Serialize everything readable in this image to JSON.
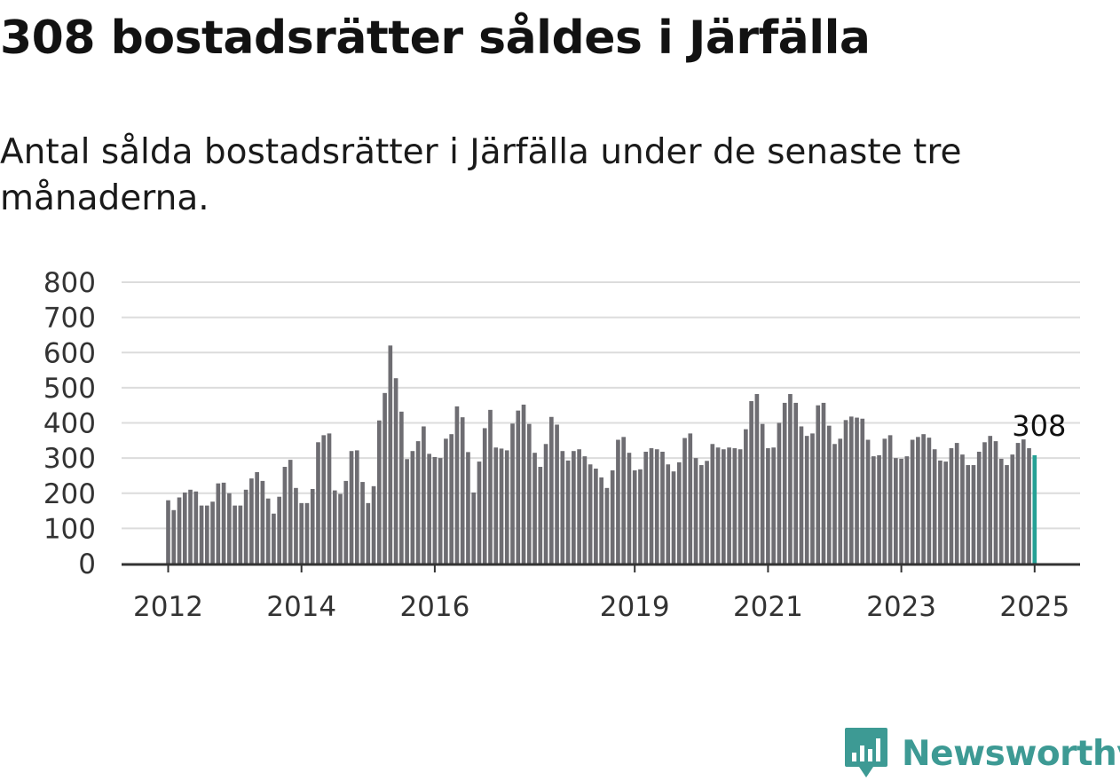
{
  "header": {
    "title": "308 bostadsrätter såldes i Järfälla",
    "subtitle": "Antal sålda bostadsrätter i Järfälla under de senaste tre månaderna."
  },
  "brand": {
    "logo_text": "Newsworthy",
    "logo_icon": "newsworthy-chart-icon",
    "accent_color": "#3d9a94"
  },
  "chart_data": {
    "type": "bar",
    "title": "",
    "xlabel": "",
    "ylabel": "",
    "ylim": [
      0,
      800
    ],
    "yticks": [
      0,
      100,
      200,
      300,
      400,
      500,
      600,
      700,
      800
    ],
    "xtick_labels": [
      "2012",
      "2014",
      "2016",
      "2019",
      "2021",
      "2023",
      "2025"
    ],
    "grid": "horizontal",
    "bar_color": "#6e6d72",
    "highlight_color": "#25a195",
    "highlight_label": "308",
    "start": "2012-01",
    "end": "2025-01",
    "values": [
      180,
      152,
      188,
      202,
      210,
      205,
      165,
      165,
      176,
      228,
      230,
      200,
      165,
      165,
      210,
      242,
      260,
      235,
      185,
      142,
      190,
      275,
      295,
      215,
      172,
      172,
      212,
      345,
      365,
      370,
      208,
      198,
      235,
      320,
      322,
      232,
      172,
      220,
      407,
      485,
      620,
      527,
      432,
      297,
      320,
      348,
      390,
      312,
      303,
      300,
      355,
      368,
      447,
      416,
      317,
      202,
      290,
      385,
      437,
      330,
      327,
      322,
      398,
      435,
      452,
      397,
      315,
      275,
      340,
      417,
      395,
      320,
      293,
      320,
      325,
      305,
      282,
      270,
      245,
      215,
      265,
      352,
      360,
      315,
      265,
      268,
      318,
      328,
      325,
      318,
      282,
      262,
      288,
      357,
      370,
      300,
      280,
      292,
      340,
      330,
      325,
      330,
      328,
      325,
      382,
      462,
      482,
      397,
      328,
      330,
      400,
      457,
      482,
      457,
      390,
      363,
      370,
      450,
      457,
      392,
      340,
      355,
      408,
      418,
      415,
      412,
      352,
      305,
      308,
      355,
      365,
      300,
      298,
      305,
      352,
      360,
      368,
      358,
      325,
      293,
      290,
      328,
      343,
      310,
      280,
      280,
      318,
      345,
      363,
      348,
      298,
      280,
      310,
      343,
      353,
      328,
      308
    ]
  }
}
